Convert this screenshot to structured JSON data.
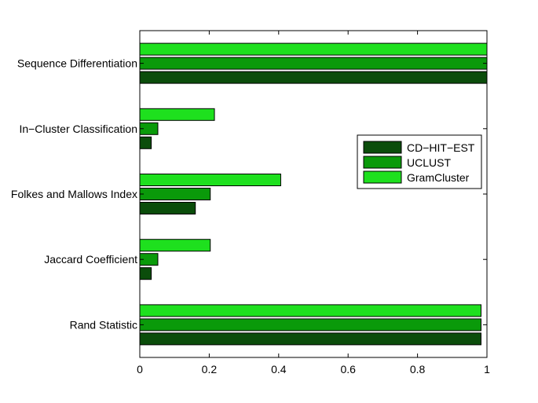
{
  "chart_data": {
    "type": "bar",
    "orientation": "horizontal",
    "categories": [
      "Sequence Differentiation",
      "In−Cluster Classification",
      "Folkes and Mallows Index",
      "Jaccard Coefficient",
      "Rand Statistic"
    ],
    "series": [
      {
        "name": "CD−HIT−EST",
        "color": "#0b4d0b",
        "values": [
          1.0,
          0.033,
          0.16,
          0.033,
          0.983
        ]
      },
      {
        "name": "UCLUST",
        "color": "#0a9a0a",
        "values": [
          1.0,
          0.052,
          0.203,
          0.052,
          0.983
        ]
      },
      {
        "name": "GramCluster",
        "color": "#1ee01e",
        "values": [
          1.0,
          0.215,
          0.406,
          0.203,
          0.983
        ]
      }
    ],
    "xlim": [
      0,
      1
    ],
    "xticks": [
      "0",
      "0.2",
      "0.4",
      "0.6",
      "0.8",
      "1"
    ],
    "xtick_values": [
      0,
      0.2,
      0.4,
      0.6,
      0.8,
      1
    ],
    "legend_position": "right",
    "grid": false
  }
}
